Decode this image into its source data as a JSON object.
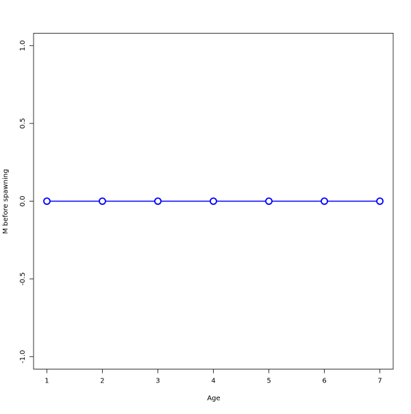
{
  "chart_data": {
    "type": "line",
    "title": "",
    "xlabel": "Age",
    "ylabel": "M before spawning",
    "x": [
      1,
      2,
      3,
      4,
      5,
      6,
      7
    ],
    "series": [
      {
        "values": [
          0,
          0,
          0,
          0,
          0,
          0,
          0
        ],
        "color": "#0000ff",
        "marker": "open-circle"
      }
    ],
    "xticks": [
      "1",
      "2",
      "3",
      "4",
      "5",
      "6",
      "7"
    ],
    "yticks": [
      "-1.0",
      "-0.5",
      "0.0",
      "0.5",
      "1.0"
    ],
    "xlim": [
      0.76,
      7.24
    ],
    "ylim": [
      -1.08,
      1.08
    ],
    "grid": false,
    "legend": "none"
  }
}
